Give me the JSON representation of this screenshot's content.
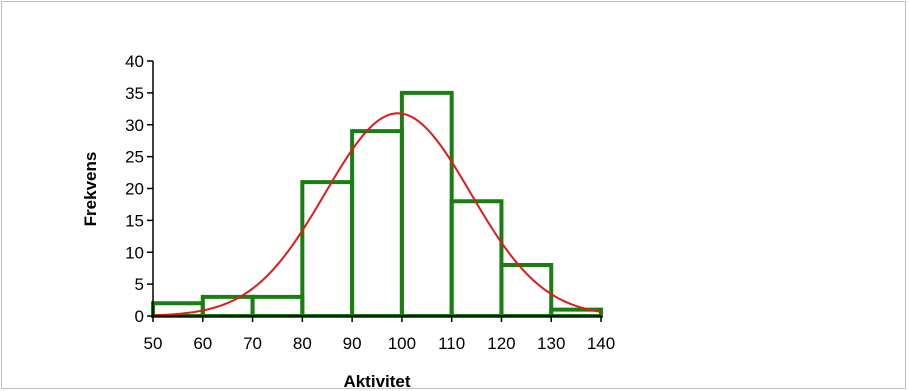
{
  "chart_data": {
    "type": "bar",
    "subtype": "histogram",
    "xlabel": "Aktivitet",
    "ylabel": "Frekvens",
    "xlim": [
      50,
      140
    ],
    "ylim": [
      0,
      40
    ],
    "x_ticks": [
      50,
      60,
      70,
      80,
      90,
      100,
      110,
      120,
      130,
      140
    ],
    "y_ticks": [
      0,
      5,
      10,
      15,
      20,
      25,
      30,
      35,
      40
    ],
    "bins": [
      {
        "from": 50,
        "to": 60,
        "value": 2
      },
      {
        "from": 60,
        "to": 70,
        "value": 3
      },
      {
        "from": 70,
        "to": 80,
        "value": 3
      },
      {
        "from": 80,
        "to": 90,
        "value": 21
      },
      {
        "from": 90,
        "to": 100,
        "value": 29
      },
      {
        "from": 100,
        "to": 110,
        "value": 35
      },
      {
        "from": 110,
        "to": 120,
        "value": 18
      },
      {
        "from": 120,
        "to": 130,
        "value": 8
      },
      {
        "from": 130,
        "to": 140,
        "value": 1
      }
    ],
    "curve": {
      "type": "normal",
      "mean": 99.2,
      "sd": 14.6,
      "peak": 31.8
    },
    "grid": false,
    "colors": {
      "bars": "#1a7f12",
      "curve": "#e31a1c",
      "axis": "#000000",
      "frame": "#bfbfbf"
    }
  }
}
